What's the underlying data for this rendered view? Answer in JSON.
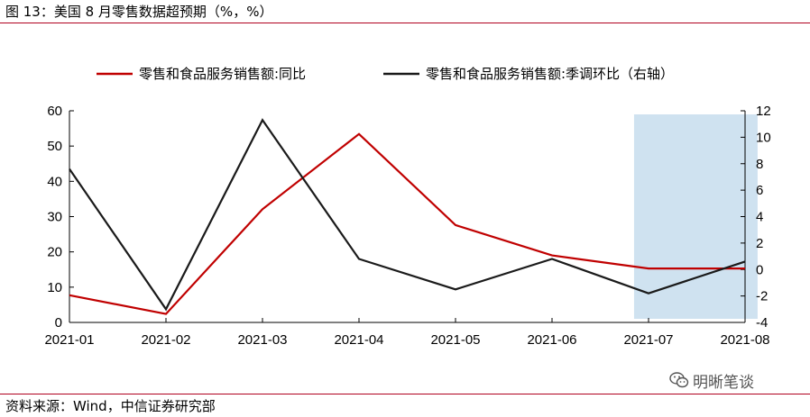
{
  "figure": {
    "title": "图 13：美国 8 月零售数据超预期（%，%）",
    "source": "资料来源：Wind，中信证券研究部",
    "watermark": "明晰笔谈"
  },
  "chart_data": {
    "type": "line",
    "categories": [
      "2021-01",
      "2021-02",
      "2021-03",
      "2021-04",
      "2021-05",
      "2021-06",
      "2021-07",
      "2021-08"
    ],
    "series": [
      {
        "name": "零售和食品服务销售额:同比",
        "axis": "left",
        "color": "#c00000",
        "values": [
          7.7,
          2.4,
          32.1,
          53.4,
          27.6,
          19.0,
          15.3,
          15.3
        ]
      },
      {
        "name": "零售和食品服务销售额:季调环比（右轴）",
        "axis": "right",
        "color": "#1a1a1a",
        "values": [
          7.6,
          -3.0,
          11.3,
          0.8,
          -1.5,
          0.8,
          -1.8,
          0.6
        ]
      }
    ],
    "y_left": {
      "min": 0,
      "max": 60,
      "ticks": [
        0,
        10,
        20,
        30,
        40,
        50,
        60
      ]
    },
    "y_right": {
      "min": -4,
      "max": 12,
      "ticks": [
        -4,
        -2,
        0,
        2,
        4,
        6,
        8,
        10,
        12
      ]
    },
    "highlight": {
      "from": "2021-07",
      "to": "2021-08",
      "color": "#cfe2f0"
    },
    "legend_position": "top",
    "grid": false
  }
}
